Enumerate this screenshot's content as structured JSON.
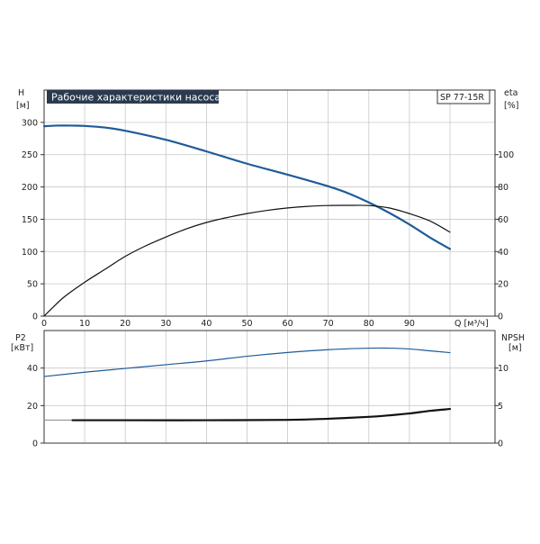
{
  "title": "Рабочие характеристики насоса",
  "model_label": "SP 77-15R",
  "colors": {
    "blue": "#1f5b9a",
    "black": "#111111",
    "title_bg": "#2b3a4f"
  },
  "chart_data": [
    {
      "type": "line",
      "panel": "top",
      "y_left_label": [
        "H",
        "[м]"
      ],
      "y_right_label": [
        "eta",
        "[%]"
      ],
      "x_label": "Q [м³/ч]",
      "xlim": [
        0,
        100
      ],
      "ylim_left": [
        0,
        350
      ],
      "ylim_right": [
        0,
        140
      ],
      "x_ticks": [
        0,
        10,
        20,
        30,
        40,
        50,
        60,
        70,
        80,
        90
      ],
      "y_left_ticks": [
        0,
        50,
        100,
        150,
        200,
        250,
        300
      ],
      "y_right_ticks": [
        0,
        20,
        40,
        60,
        80,
        100
      ],
      "series": [
        {
          "axis": "left",
          "color": "#1f5b9a",
          "width": 2.2,
          "x": [
            0,
            3,
            7,
            10,
            15,
            20,
            30,
            40,
            50,
            60,
            70,
            75,
            80,
            85,
            90,
            95,
            100
          ],
          "y": [
            294,
            295,
            295,
            294.5,
            292,
            287,
            273,
            255,
            236,
            219,
            201,
            190,
            176,
            160,
            142,
            122,
            104
          ]
        },
        {
          "axis": "right",
          "color": "#111111",
          "width": 1.2,
          "x": [
            0,
            2,
            5,
            10,
            15,
            20,
            25,
            30,
            35,
            40,
            45,
            50,
            55,
            60,
            65,
            70,
            75,
            80,
            85,
            90,
            95,
            100
          ],
          "y": [
            0,
            5,
            12,
            21,
            29,
            37,
            43.5,
            49,
            54,
            58,
            61,
            63.5,
            65.5,
            67,
            68,
            68.5,
            68.6,
            68.5,
            67,
            63.5,
            59,
            52
          ]
        }
      ]
    },
    {
      "type": "line",
      "panel": "bottom",
      "y_left_label": [
        "P2",
        "[кВт]"
      ],
      "y_right_label": [
        "NPSH",
        "[м]"
      ],
      "xlim": [
        0,
        100
      ],
      "ylim_left": [
        0,
        60
      ],
      "ylim_right": [
        0,
        15
      ],
      "y_left_ticks": [
        0,
        20,
        40
      ],
      "y_right_ticks": [
        0,
        5,
        10
      ],
      "series": [
        {
          "axis": "left",
          "color": "#1f5b9a",
          "width": 1.2,
          "x": [
            0,
            10,
            20,
            30,
            40,
            50,
            60,
            70,
            80,
            85,
            90,
            95,
            100
          ],
          "y": [
            35.5,
            37.8,
            39.8,
            41.8,
            43.8,
            46.3,
            48.3,
            49.8,
            50.6,
            50.6,
            50.2,
            49.2,
            48.2
          ]
        },
        {
          "axis": "left",
          "color": "#888888",
          "width": 1,
          "x": [
            0,
            7
          ],
          "y": [
            12.3,
            12.3
          ]
        },
        {
          "axis": "right",
          "color": "#111111",
          "width": 2.2,
          "x": [
            7,
            20,
            40,
            60,
            70,
            80,
            85,
            90,
            95,
            100
          ],
          "y": [
            3.05,
            3.05,
            3.05,
            3.1,
            3.25,
            3.5,
            3.7,
            3.95,
            4.3,
            4.55
          ]
        }
      ]
    }
  ]
}
